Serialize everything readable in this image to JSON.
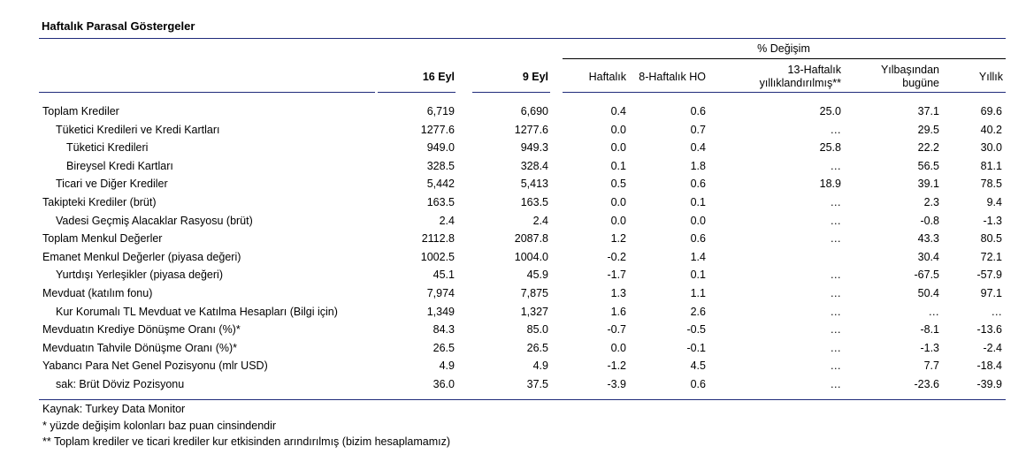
{
  "title": "Haftalık Parasal Göstergeler",
  "pct_header": "% Değişim",
  "columns": {
    "c16": "16 Eyl",
    "c9": "9 Eyl",
    "haftalik": "Haftalık",
    "ho8": "8-Haftalık HO",
    "h13_line1": "13-Haftalık",
    "h13_line2": "yıllıklandırılmış**",
    "ytd_line1": "Yılbaşından",
    "ytd_line2": "bugüne",
    "yillik": "Yıllık"
  },
  "colors": {
    "rule": "#1f2a7a"
  },
  "rows": [
    {
      "indent": 0,
      "label": "Toplam Krediler",
      "v": [
        "6,719",
        "6,690",
        "0.4",
        "0.6",
        "25.0",
        "37.1",
        "69.6"
      ]
    },
    {
      "indent": 1,
      "label": "Tüketici Kredileri ve Kredi Kartları",
      "v": [
        "1277.6",
        "1277.6",
        "0.0",
        "0.7",
        "…",
        "29.5",
        "40.2"
      ]
    },
    {
      "indent": 2,
      "label": "Tüketici Kredileri",
      "v": [
        "949.0",
        "949.3",
        "0.0",
        "0.4",
        "25.8",
        "22.2",
        "30.0"
      ]
    },
    {
      "indent": 2,
      "label": "Bireysel Kredi Kartları",
      "v": [
        "328.5",
        "328.4",
        "0.1",
        "1.8",
        "…",
        "56.5",
        "81.1"
      ]
    },
    {
      "indent": 1,
      "label": "Ticari ve Diğer Krediler",
      "v": [
        "5,442",
        "5,413",
        "0.5",
        "0.6",
        "18.9",
        "39.1",
        "78.5"
      ]
    },
    {
      "indent": 0,
      "label": "Takipteki Krediler (brüt)",
      "v": [
        "163.5",
        "163.5",
        "0.0",
        "0.1",
        "…",
        "2.3",
        "9.4"
      ]
    },
    {
      "indent": 1,
      "label": "Vadesi Geçmiş Alacaklar Rasyosu (brüt)",
      "v": [
        "2.4",
        "2.4",
        "0.0",
        "0.0",
        "…",
        "-0.8",
        "-1.3"
      ]
    },
    {
      "indent": 0,
      "label": "Toplam Menkul Değerler",
      "v": [
        "2112.8",
        "2087.8",
        "1.2",
        "0.6",
        "…",
        "43.3",
        "80.5"
      ]
    },
    {
      "indent": 0,
      "label": "Emanet Menkul Değerler (piyasa değeri)",
      "v": [
        "1002.5",
        "1004.0",
        "-0.2",
        "1.4",
        "",
        "30.4",
        "72.1"
      ]
    },
    {
      "indent": 1,
      "label": "Yurtdışı Yerleşikler (piyasa değeri)",
      "v": [
        "45.1",
        "45.9",
        "-1.7",
        "0.1",
        "…",
        "-67.5",
        "-57.9"
      ]
    },
    {
      "indent": 0,
      "label": "Mevduat (katılım fonu)",
      "v": [
        "7,974",
        "7,875",
        "1.3",
        "1.1",
        "…",
        "50.4",
        "97.1"
      ]
    },
    {
      "indent": 1,
      "label": "Kur Korumalı TL Mevduat ve Katılma Hesapları (Bilgi için)",
      "v": [
        "1,349",
        "1,327",
        "1.6",
        "2.6",
        "…",
        "…",
        "…"
      ]
    },
    {
      "indent": 0,
      "label": "Mevduatın Krediye Dönüşme Oranı (%)*",
      "v": [
        "84.3",
        "85.0",
        "-0.7",
        "-0.5",
        "…",
        "-8.1",
        "-13.6"
      ]
    },
    {
      "indent": 0,
      "label": "Mevduatın Tahvile Dönüşme Oranı (%)*",
      "v": [
        "26.5",
        "26.5",
        "0.0",
        "-0.1",
        "…",
        "-1.3",
        "-2.4"
      ]
    },
    {
      "indent": 0,
      "label": "Yabancı Para Net Genel Pozisyonu (mlr USD)",
      "v": [
        "4.9",
        "4.9",
        "-1.2",
        "4.5",
        "…",
        "7.7",
        "-18.4"
      ]
    },
    {
      "indent": 1,
      "label": "sak: Brüt Döviz Pozisyonu",
      "v": [
        "36.0",
        "37.5",
        "-3.9",
        "0.6",
        "…",
        "-23.6",
        "-39.9"
      ]
    }
  ],
  "notes": [
    "Kaynak: Turkey Data Monitor",
    "* yüzde değişim kolonları baz puan cinsindendir",
    "** Toplam krediler ve ticari krediler kur etkisinden arındırılmış (bizim hesaplamamız)"
  ]
}
